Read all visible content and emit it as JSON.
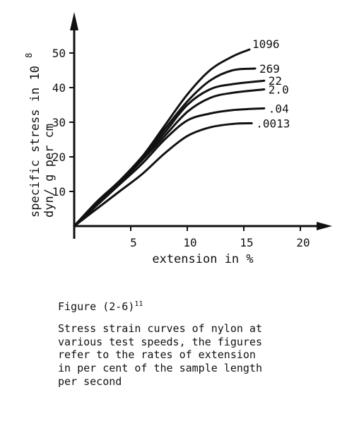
{
  "chart_data": {
    "type": "line",
    "xlabel": "extension in %",
    "ylabel_line1": "specific stress in 10",
    "ylabel_exponent": "8",
    "ylabel_line2": "dyn/ g per cm",
    "x_ticks": [
      "5",
      "10",
      "15",
      "20"
    ],
    "y_ticks": [
      "10",
      "20",
      "30",
      "40",
      "50"
    ],
    "xlim": [
      0,
      20
    ],
    "ylim": [
      0,
      55
    ],
    "grid": false,
    "series": [
      {
        "name": "1096",
        "x": [
          0,
          2,
          4,
          6,
          8,
          10,
          12,
          14,
          15.5
        ],
        "y": [
          0,
          7,
          13,
          20,
          29,
          38,
          45,
          49,
          51
        ]
      },
      {
        "name": "269",
        "x": [
          0,
          2,
          4,
          6,
          8,
          10,
          12,
          14,
          16
        ],
        "y": [
          0,
          7,
          13,
          20,
          28,
          36,
          42,
          45,
          45.5
        ]
      },
      {
        "name": "22",
        "x": [
          0,
          2,
          4,
          6,
          8,
          10,
          12,
          14,
          16.8
        ],
        "y": [
          0,
          6.5,
          12.5,
          19.5,
          27,
          35,
          39.5,
          41,
          42
        ]
      },
      {
        "name": "2.0",
        "x": [
          0,
          2,
          4,
          6,
          8,
          10,
          12,
          14,
          16.8
        ],
        "y": [
          0,
          6.5,
          12.5,
          19,
          26,
          33,
          37,
          38.5,
          39.5
        ]
      },
      {
        "name": ".04",
        "x": [
          0,
          2,
          4,
          6,
          8,
          10,
          12,
          14,
          16.8
        ],
        "y": [
          0,
          6,
          12,
          18,
          25,
          30.5,
          32.5,
          33.5,
          34
        ]
      },
      {
        "name": ".0013",
        "x": [
          0,
          2,
          4,
          6,
          8,
          10,
          12,
          14,
          15.7
        ],
        "y": [
          0,
          5,
          10,
          15,
          21,
          26,
          28.5,
          29.5,
          29.7
        ]
      }
    ]
  },
  "caption": {
    "figure_label": "Figure (2-6)",
    "figure_superscript": "11",
    "lines": [
      "Stress strain curves of nylon at",
      "various test speeds, the figures",
      "refer to the rates of extension",
      "in per cent of the sample length",
      "per second"
    ]
  }
}
